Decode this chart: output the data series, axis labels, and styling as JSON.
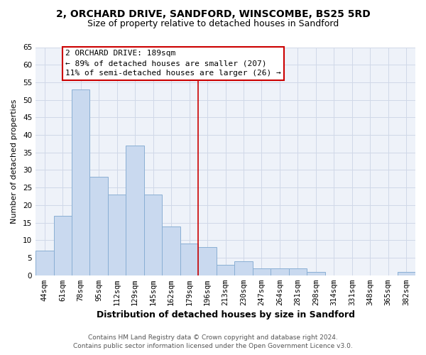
{
  "title1": "2, ORCHARD DRIVE, SANDFORD, WINSCOMBE, BS25 5RD",
  "title2": "Size of property relative to detached houses in Sandford",
  "xlabel": "Distribution of detached houses by size in Sandford",
  "ylabel": "Number of detached properties",
  "bar_labels": [
    "44sqm",
    "61sqm",
    "78sqm",
    "95sqm",
    "112sqm",
    "129sqm",
    "145sqm",
    "162sqm",
    "179sqm",
    "196sqm",
    "213sqm",
    "230sqm",
    "247sqm",
    "264sqm",
    "281sqm",
    "298sqm",
    "314sqm",
    "331sqm",
    "348sqm",
    "365sqm",
    "382sqm"
  ],
  "bar_heights": [
    7,
    17,
    53,
    28,
    23,
    37,
    23,
    14,
    9,
    8,
    3,
    4,
    2,
    2,
    2,
    1,
    0,
    0,
    0,
    0,
    1
  ],
  "bar_color": "#c9d9ef",
  "bar_edge_color": "#8aafd4",
  "vline_color": "#cc0000",
  "annotation_title": "2 ORCHARD DRIVE: 189sqm",
  "annotation_line1": "← 89% of detached houses are smaller (207)",
  "annotation_line2": "11% of semi-detached houses are larger (26) →",
  "annotation_box_color": "#ffffff",
  "annotation_box_edge": "#cc0000",
  "ylim": [
    0,
    65
  ],
  "yticks": [
    0,
    5,
    10,
    15,
    20,
    25,
    30,
    35,
    40,
    45,
    50,
    55,
    60,
    65
  ],
  "footer1": "Contains HM Land Registry data © Crown copyright and database right 2024.",
  "footer2": "Contains public sector information licensed under the Open Government Licence v3.0.",
  "bg_color": "#ffffff",
  "plot_bg_color": "#eef2f9",
  "grid_color": "#d0d8e8",
  "title1_fontsize": 10,
  "title2_fontsize": 9,
  "xlabel_fontsize": 9,
  "ylabel_fontsize": 8,
  "tick_fontsize": 7.5,
  "annotation_fontsize": 8,
  "footer_fontsize": 6.5
}
